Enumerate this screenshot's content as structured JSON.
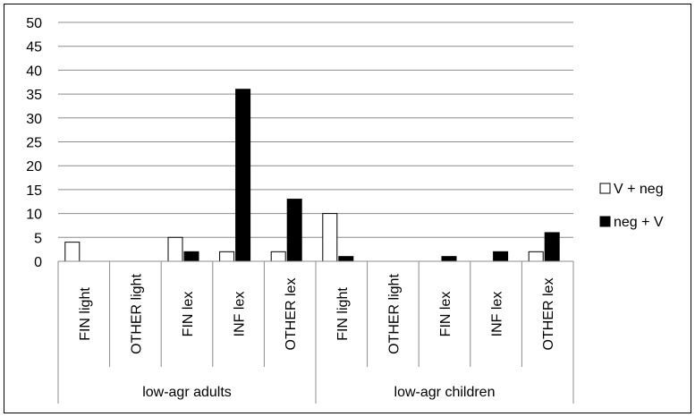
{
  "chart_data": {
    "type": "bar",
    "title": "",
    "xlabel": "",
    "ylabel": "",
    "ylim": [
      0,
      50
    ],
    "yticks": [
      0,
      5,
      10,
      15,
      20,
      25,
      30,
      35,
      40,
      45,
      50
    ],
    "grid": true,
    "legend_position": "right",
    "categories": [
      "FIN light",
      "OTHER light",
      "FIN lex",
      "INF lex",
      "OTHER lex",
      "FIN light",
      "OTHER light",
      "FIN lex",
      "INF lex",
      "OTHER lex"
    ],
    "groups": [
      {
        "label": "low-agr adults",
        "span": 5
      },
      {
        "label": "low-agr children",
        "span": 5
      }
    ],
    "series": [
      {
        "name": "V + neg",
        "color": "#ffffff",
        "stroke": "#000000",
        "values": [
          4,
          0,
          5,
          2,
          2,
          10,
          0,
          0,
          0,
          2
        ]
      },
      {
        "name": "neg + V",
        "color": "#000000",
        "stroke": "#000000",
        "values": [
          0,
          0,
          2,
          36,
          13,
          1,
          0,
          1,
          2,
          6
        ]
      }
    ]
  }
}
